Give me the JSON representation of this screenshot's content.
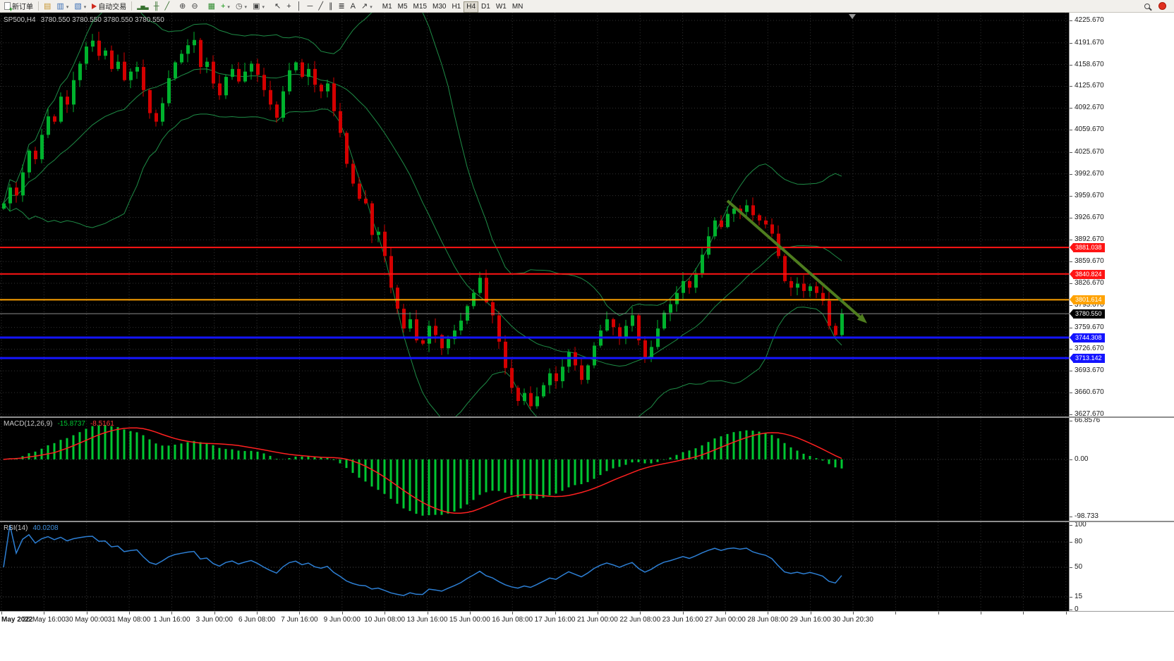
{
  "toolbar": {
    "new_order": {
      "label": "新订单"
    },
    "auto_trading": {
      "label": "自动交易"
    },
    "left_icons": [
      {
        "name": "market-watch",
        "glyph": "▤",
        "color": "#c89632"
      },
      {
        "name": "new-chart",
        "glyph": "▥",
        "color": "#3b6fb5",
        "dropdown": true
      },
      {
        "name": "chart-profiles",
        "glyph": "▧",
        "color": "#3b6fb5",
        "dropdown": true
      }
    ],
    "tool_groups": [
      [
        {
          "name": "bar-chart",
          "glyph": "▂▅▃",
          "color": "#35702d",
          "small": true
        },
        {
          "name": "candlestick-chart",
          "glyph": "╫",
          "color": "#35702d"
        },
        {
          "name": "line-chart",
          "glyph": "╱",
          "color": "#35702d"
        }
      ],
      [
        {
          "name": "zoom-in",
          "glyph": "⊕",
          "color": "#444444"
        },
        {
          "name": "zoom-out",
          "glyph": "⊖",
          "color": "#444444"
        }
      ],
      [
        {
          "name": "tile-windows",
          "glyph": "▦",
          "color": "#2e8b2e"
        },
        {
          "name": "indicators-list",
          "glyph": "+",
          "color": "#0a930a",
          "dropdown": true
        },
        {
          "name": "period-selector",
          "glyph": "◷",
          "color": "#444444",
          "dropdown": true
        },
        {
          "name": "template-selector",
          "glyph": "▣",
          "color": "#444444",
          "dropdown": true
        }
      ],
      [
        {
          "name": "cursor",
          "glyph": "↖",
          "color": "#333333"
        },
        {
          "name": "crosshair",
          "glyph": "+",
          "color": "#333333"
        },
        {
          "name": "vertical-line",
          "glyph": "│",
          "color": "#333333"
        },
        {
          "name": "horizontal-line",
          "glyph": "─",
          "color": "#333333"
        },
        {
          "name": "trendline",
          "glyph": "╱",
          "color": "#333333"
        },
        {
          "name": "equidistant-channel",
          "glyph": "∥",
          "color": "#333333"
        },
        {
          "name": "fibonacci-retracement",
          "glyph": "≣",
          "color": "#333333"
        },
        {
          "name": "text-label",
          "glyph": "A",
          "color": "#333333"
        },
        {
          "name": "arrow-objects",
          "glyph": "↗",
          "color": "#333333",
          "dropdown": true
        }
      ]
    ],
    "timeframes": [
      "M1",
      "M5",
      "M15",
      "M30",
      "H1",
      "H4",
      "D1",
      "W1",
      "MN"
    ],
    "active_timeframe": "H4"
  },
  "chart": {
    "symbol_label": "SP500,H4",
    "ohlc_text": "3780.550 3780.550 3780.550 3780.550",
    "price_axis": [
      "4225.670",
      "4191.670",
      "4158.670",
      "4125.670",
      "4092.670",
      "4059.670",
      "4025.670",
      "3992.670",
      "3959.670",
      "3926.670",
      "3892.670",
      "3859.670",
      "3826.670",
      "3793.670",
      "3759.670",
      "3726.670",
      "3693.670",
      "3660.670",
      "3627.670"
    ],
    "time_axis": [
      "May 2022",
      "26 May 16:00",
      "30 May 00:00",
      "31 May 08:00",
      "1 Jun 16:00",
      "3 Jun 00:00",
      "6 Jun 08:00",
      "7 Jun 16:00",
      "9 Jun 00:00",
      "10 Jun 08:00",
      "13 Jun 16:00",
      "15 Jun 00:00",
      "16 Jun 08:00",
      "17 Jun 16:00",
      "21 Jun 00:00",
      "22 Jun 08:00",
      "23 Jun 16:00",
      "27 Jun 00:00",
      "28 Jun 08:00",
      "29 Jun 16:00",
      "30 Jun 20:30"
    ]
  },
  "macd_panel": {
    "label": "MACD(12,26,9)",
    "value_main": "-15.8737",
    "value_signal": "-8.5161",
    "axis": [
      "66.8576",
      "0.00",
      "-98.733"
    ]
  },
  "rsi_panel": {
    "label": "RSI(14)",
    "value": "40.0208",
    "axis": [
      "100",
      "80",
      "50",
      "15",
      "0"
    ]
  },
  "chart_data": {
    "type": "candlestick",
    "symbol": "SP500",
    "timeframe": "H4",
    "last_ohlc": [
      3780.55,
      3780.55,
      3780.55,
      3780.55
    ],
    "y_range": [
      3627.67,
      4225.67
    ],
    "closes": [
      3948,
      3972,
      3960,
      3995,
      4028,
      4015,
      4052,
      4080,
      4072,
      4110,
      4098,
      4135,
      4160,
      4186,
      4195,
      4172,
      4180,
      4152,
      4163,
      4135,
      4148,
      4155,
      4120,
      4085,
      4072,
      4100,
      4138,
      4162,
      4175,
      4188,
      4196,
      4155,
      4163,
      4130,
      4112,
      4140,
      4152,
      4133,
      4148,
      4160,
      4143,
      4120,
      4098,
      4078,
      4118,
      4150,
      4162,
      4140,
      4152,
      4128,
      4118,
      4130,
      4088,
      4055,
      4008,
      3978,
      3955,
      3948,
      3900,
      3905,
      3868,
      3820,
      3788,
      3758,
      3772,
      3740,
      3735,
      3762,
      3748,
      3728,
      3742,
      3755,
      3770,
      3792,
      3812,
      3835,
      3798,
      3778,
      3738,
      3698,
      3668,
      3648,
      3660,
      3640,
      3655,
      3672,
      3690,
      3678,
      3700,
      3722,
      3702,
      3680,
      3702,
      3732,
      3755,
      3772,
      3760,
      3744,
      3762,
      3778,
      3740,
      3712,
      3730,
      3758,
      3782,
      3795,
      3812,
      3830,
      3820,
      3842,
      3870,
      3898,
      3922,
      3912,
      3932,
      3940,
      3935,
      3945,
      3930,
      3922,
      3916,
      3902,
      3868,
      3830,
      3820,
      3826,
      3815,
      3822,
      3812,
      3800,
      3762,
      3748,
      3780.55
    ],
    "bid_price": 3780.55,
    "horizontal_levels": [
      {
        "price": 3881.038,
        "color": "#ff1414",
        "width": 2
      },
      {
        "price": 3840.824,
        "color": "#ff1414",
        "width": 2
      },
      {
        "price": 3801.614,
        "color": "#ffa200",
        "width": 2
      },
      {
        "price": 3744.308,
        "color": "#1414ff",
        "width": 3
      },
      {
        "price": 3713.142,
        "color": "#1414ff",
        "width": 3
      }
    ],
    "trend_arrow": {
      "from_index": 114,
      "from_price": 3952,
      "to_index": 136,
      "to_price": 3766,
      "color": "#4e7d1e"
    },
    "indicators": [
      {
        "type": "bollinger_bands",
        "period": 20,
        "deviation": 2,
        "color": "#1e8c46"
      },
      {
        "type": "macd",
        "fast": 12,
        "slow": 26,
        "signal": 9,
        "current_macd": -15.8737,
        "current_signal": -8.5161,
        "y_range": [
          -98.733,
          66.8576
        ],
        "histogram_color": "#00c832",
        "signal_color": "#ff2020"
      },
      {
        "type": "rsi",
        "period": 14,
        "current": 40.0208,
        "y_range": [
          0,
          100
        ],
        "levels": [
          80,
          50,
          15
        ],
        "color": "#2d7fd4"
      }
    ],
    "colors": {
      "up": "#00b22d",
      "down": "#d40000",
      "background": "#000000",
      "grid": "#323232",
      "axis_bg": "#ffffff",
      "bid_line": "#8c8c8c",
      "bid_box": "#000000"
    }
  }
}
